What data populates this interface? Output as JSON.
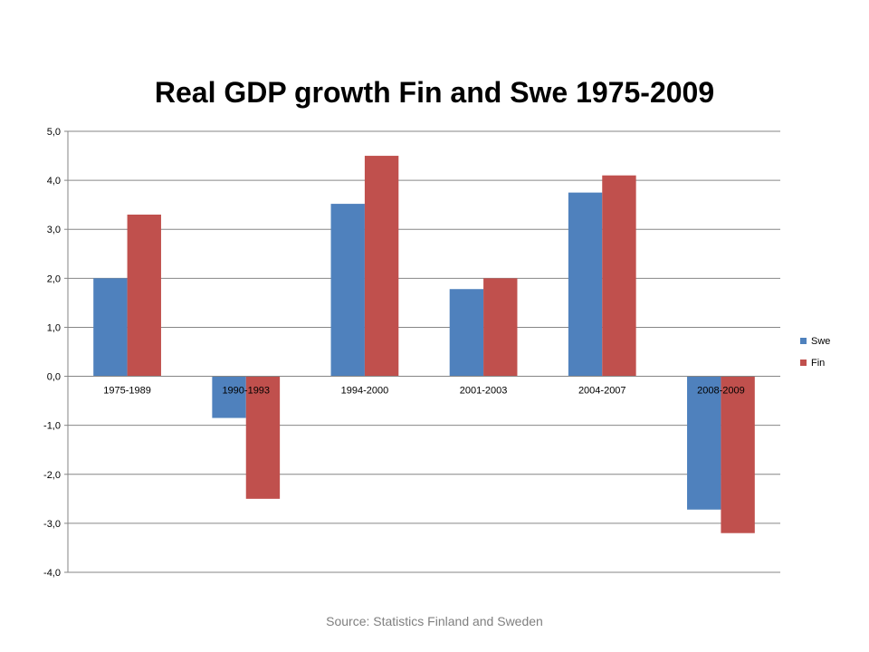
{
  "source_note": "Source: Statistics Finland and Sweden",
  "chart_data": {
    "type": "bar",
    "title": "Real GDP growth Fin and Swe 1975-2009",
    "categories": [
      "1975-1989",
      "1990-1993",
      "1994-2000",
      "2001-2003",
      "2004-2007",
      "2008-2009"
    ],
    "series": [
      {
        "name": "Swe",
        "color": "#4f81bd",
        "values": [
          2.0,
          -0.85,
          3.52,
          1.78,
          3.75,
          -2.72
        ]
      },
      {
        "name": "Fin",
        "color": "#c0504d",
        "values": [
          3.3,
          -2.5,
          4.5,
          2.0,
          4.1,
          -3.2
        ]
      }
    ],
    "y_ticks": [
      "5,0",
      "4,0",
      "3,0",
      "2,0",
      "1,0",
      "0,0",
      "-1,0",
      "-2,0",
      "-3,0",
      "-4,0"
    ],
    "ylim": [
      -4,
      5
    ],
    "grid": true,
    "legend_position": "right"
  }
}
